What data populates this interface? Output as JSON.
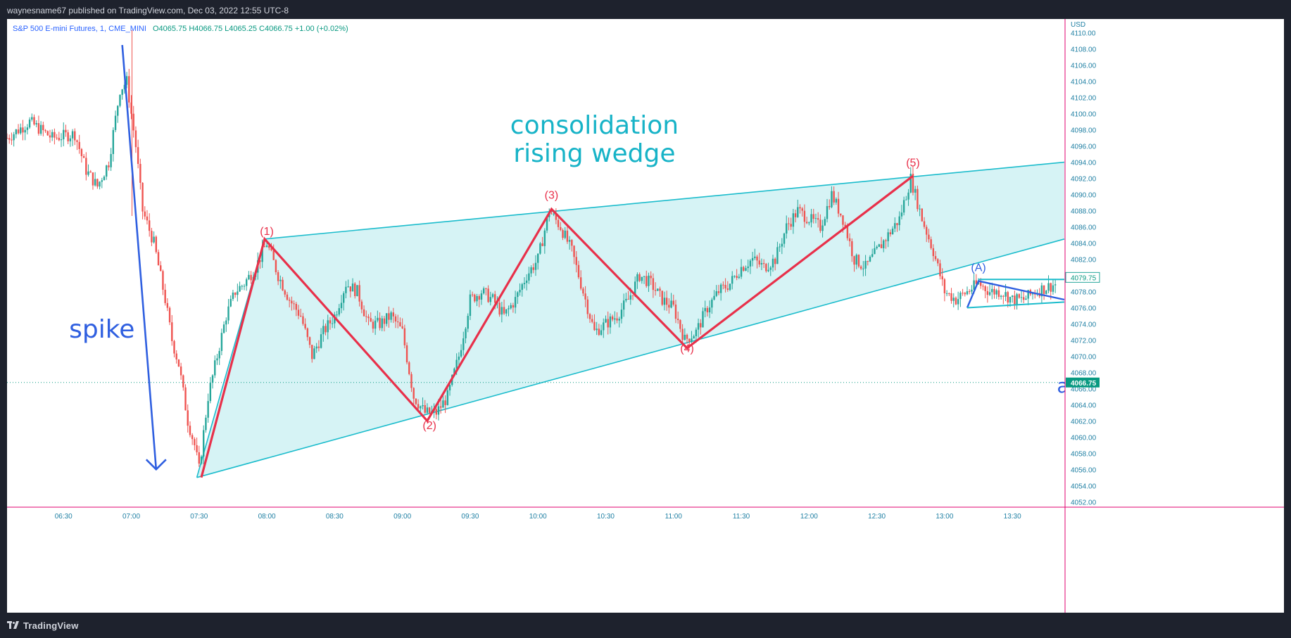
{
  "header": {
    "publish_line": "waynesname67 published on TradingView.com, Dec 03, 2022 12:55 UTC-8"
  },
  "footer": {
    "brand": "TradingView"
  },
  "legend": {
    "symbol": "S&P 500 E-mini Futures, 1, CME_MINI",
    "ohlc": "O4065.75  H4066.75  L4065.25  C4066.75  +1.00 (+0.02%)"
  },
  "colors": {
    "up": "#26a69a",
    "down": "#ef5350",
    "wave": "#e8304a",
    "wedge": "#1bbccc",
    "wedge_fill": "#d6f3f5",
    "spike": "#2f5fe0",
    "axis_text": "#1e7fa3",
    "last_price_bg": "#089981"
  },
  "chart_data": {
    "type": "candlestick",
    "currency": "USD",
    "y_ticks": [
      4052,
      4054,
      4056,
      4058,
      4060,
      4062,
      4064,
      4066,
      4068,
      4070,
      4072,
      4074,
      4076,
      4078,
      4080,
      4082,
      4084,
      4086,
      4088,
      4090,
      4092,
      4094,
      4096,
      4098,
      4100,
      4102,
      4104,
      4106,
      4108,
      4110
    ],
    "y_tick_labels": [
      "4052.00",
      "4054.00",
      "4056.00",
      "4058.00",
      "4060.00",
      "4062.00",
      "4064.00",
      "4066.00",
      "4068.00",
      "4070.00",
      "4072.00",
      "4074.00",
      "4076.00",
      "4078.00",
      "4080.00",
      "4082.00",
      "4084.00",
      "4086.00",
      "4088.00",
      "4090.00",
      "4092.00",
      "4094.00",
      "4096.00",
      "4098.00",
      "4100.00",
      "4102.00",
      "4104.00",
      "4106.00",
      "4108.00",
      "4110.00"
    ],
    "ylim": [
      4051.5,
      4110.5
    ],
    "x_ticks": [
      "06:30",
      "07:00",
      "07:30",
      "08:00",
      "08:30",
      "09:00",
      "09:30",
      "10:00",
      "10:30",
      "11:00",
      "11:30",
      "12:00",
      "12:30",
      "13:00",
      "13:30"
    ],
    "xlim": [
      "06:05",
      "13:53"
    ],
    "last_price": 4066.75,
    "last_price_label": "4066.75",
    "secondary_price_label": "4079.75",
    "secondary_price": 4079.75,
    "price_path": [
      [
        "06:05",
        4097
      ],
      [
        "06:15",
        4099
      ],
      [
        "06:25",
        4097
      ],
      [
        "06:35",
        4097.5
      ],
      [
        "06:40",
        4093
      ],
      [
        "06:45",
        4091
      ],
      [
        "06:50",
        4094
      ],
      [
        "06:55",
        4103
      ],
      [
        "06:58",
        4104
      ],
      [
        "07:02",
        4096
      ],
      [
        "07:05",
        4088
      ],
      [
        "07:10",
        4084
      ],
      [
        "07:15",
        4077
      ],
      [
        "07:18",
        4072
      ],
      [
        "07:21",
        4069
      ],
      [
        "07:25",
        4062
      ],
      [
        "07:28",
        4059
      ],
      [
        "07:30",
        4056
      ],
      [
        "07:34",
        4065
      ],
      [
        "07:38",
        4070
      ],
      [
        "07:42",
        4075
      ],
      [
        "07:46",
        4078
      ],
      [
        "07:50",
        4079
      ],
      [
        "07:55",
        4081
      ],
      [
        "08:00",
        4084
      ],
      [
        "08:05",
        4080
      ],
      [
        "08:10",
        4077
      ],
      [
        "08:15",
        4075
      ],
      [
        "08:20",
        4070
      ],
      [
        "08:25",
        4073
      ],
      [
        "08:30",
        4075
      ],
      [
        "08:35",
        4079
      ],
      [
        "08:40",
        4078
      ],
      [
        "08:45",
        4074
      ],
      [
        "08:50",
        4074
      ],
      [
        "08:55",
        4075
      ],
      [
        "09:00",
        4073
      ],
      [
        "09:05",
        4065
      ],
      [
        "09:10",
        4063
      ],
      [
        "09:15",
        4063
      ],
      [
        "09:20",
        4065
      ],
      [
        "09:25",
        4070
      ],
      [
        "09:30",
        4077
      ],
      [
        "09:35",
        4078
      ],
      [
        "09:40",
        4077
      ],
      [
        "09:45",
        4075
      ],
      [
        "09:50",
        4077
      ],
      [
        "09:55",
        4080
      ],
      [
        "10:00",
        4082
      ],
      [
        "10:05",
        4088
      ],
      [
        "10:10",
        4086
      ],
      [
        "10:15",
        4083
      ],
      [
        "10:20",
        4078
      ],
      [
        "10:25",
        4073
      ],
      [
        "10:30",
        4074
      ],
      [
        "10:35",
        4075
      ],
      [
        "10:40",
        4077
      ],
      [
        "10:45",
        4080
      ],
      [
        "10:50",
        4079
      ],
      [
        "10:55",
        4077
      ],
      [
        "11:00",
        4076
      ],
      [
        "11:05",
        4072
      ],
      [
        "11:10",
        4073
      ],
      [
        "11:15",
        4076
      ],
      [
        "11:20",
        4078
      ],
      [
        "11:25",
        4079
      ],
      [
        "11:30",
        4081
      ],
      [
        "11:35",
        4082
      ],
      [
        "11:40",
        4081
      ],
      [
        "11:45",
        4082
      ],
      [
        "11:50",
        4086
      ],
      [
        "11:55",
        4088
      ],
      [
        "12:00",
        4087
      ],
      [
        "12:05",
        4086
      ],
      [
        "12:10",
        4090
      ],
      [
        "12:15",
        4087
      ],
      [
        "12:20",
        4082
      ],
      [
        "12:25",
        4081
      ],
      [
        "12:30",
        4083
      ],
      [
        "12:35",
        4085
      ],
      [
        "12:40",
        4087
      ],
      [
        "12:45",
        4092
      ],
      [
        "12:50",
        4087
      ],
      [
        "12:55",
        4083
      ],
      [
        "13:00",
        4078
      ],
      [
        "13:05",
        4077
      ],
      [
        "13:10",
        4078
      ],
      [
        "13:15",
        4079
      ],
      [
        "13:20",
        4078
      ],
      [
        "13:25",
        4078
      ],
      [
        "13:30",
        4077
      ],
      [
        "13:35",
        4077
      ],
      [
        "13:40",
        4078
      ],
      [
        "13:45",
        4078.5
      ],
      [
        "13:50",
        4079
      ]
    ],
    "annotations": {
      "title_line1": "consolidation",
      "title_line2": "rising wedge",
      "spike_label": "spike",
      "edge_label": "a",
      "wave_labels": [
        {
          "text": "(1)",
          "t": "08:00",
          "y": 4085
        },
        {
          "text": "(2)",
          "t": "09:12",
          "y": 4061
        },
        {
          "text": "(3)",
          "t": "10:06",
          "y": 4089.5
        },
        {
          "text": "(4)",
          "t": "11:06",
          "y": 4070.5
        },
        {
          "text": "(5)",
          "t": "12:46",
          "y": 4093.5
        },
        {
          "text": "(A)",
          "t": "13:15",
          "y": 4080.5
        }
      ],
      "wave_path": [
        [
          "07:31",
          4055
        ],
        [
          "07:59",
          4084.5
        ],
        [
          "09:11",
          4062
        ],
        [
          "10:06",
          4088.2
        ],
        [
          "11:06",
          4071
        ],
        [
          "12:46",
          4092.3
        ]
      ],
      "wedge_upper": [
        [
          "07:59",
          4084.5
        ],
        [
          "13:53",
          4094
        ]
      ],
      "wedge_lower": [
        [
          "07:29",
          4055
        ],
        [
          "13:53",
          4084.5
        ]
      ],
      "wedge_left": [
        [
          "07:29",
          4055
        ],
        [
          "07:59",
          4084.5
        ]
      ],
      "spike_line": [
        [
          "06:56",
          4108.5
        ],
        [
          "07:11",
          4056
        ]
      ],
      "small_triangle": [
        [
          "13:10",
          4076
        ],
        [
          "13:15",
          4079.3
        ],
        [
          "13:53",
          4077
        ]
      ],
      "flat_lines": [
        [
          [
            "13:15",
            4079.5
          ],
          [
            "13:53",
            4079.5
          ]
        ],
        [
          [
            "13:10",
            4076
          ],
          [
            "13:53",
            4076.7
          ]
        ]
      ]
    }
  }
}
